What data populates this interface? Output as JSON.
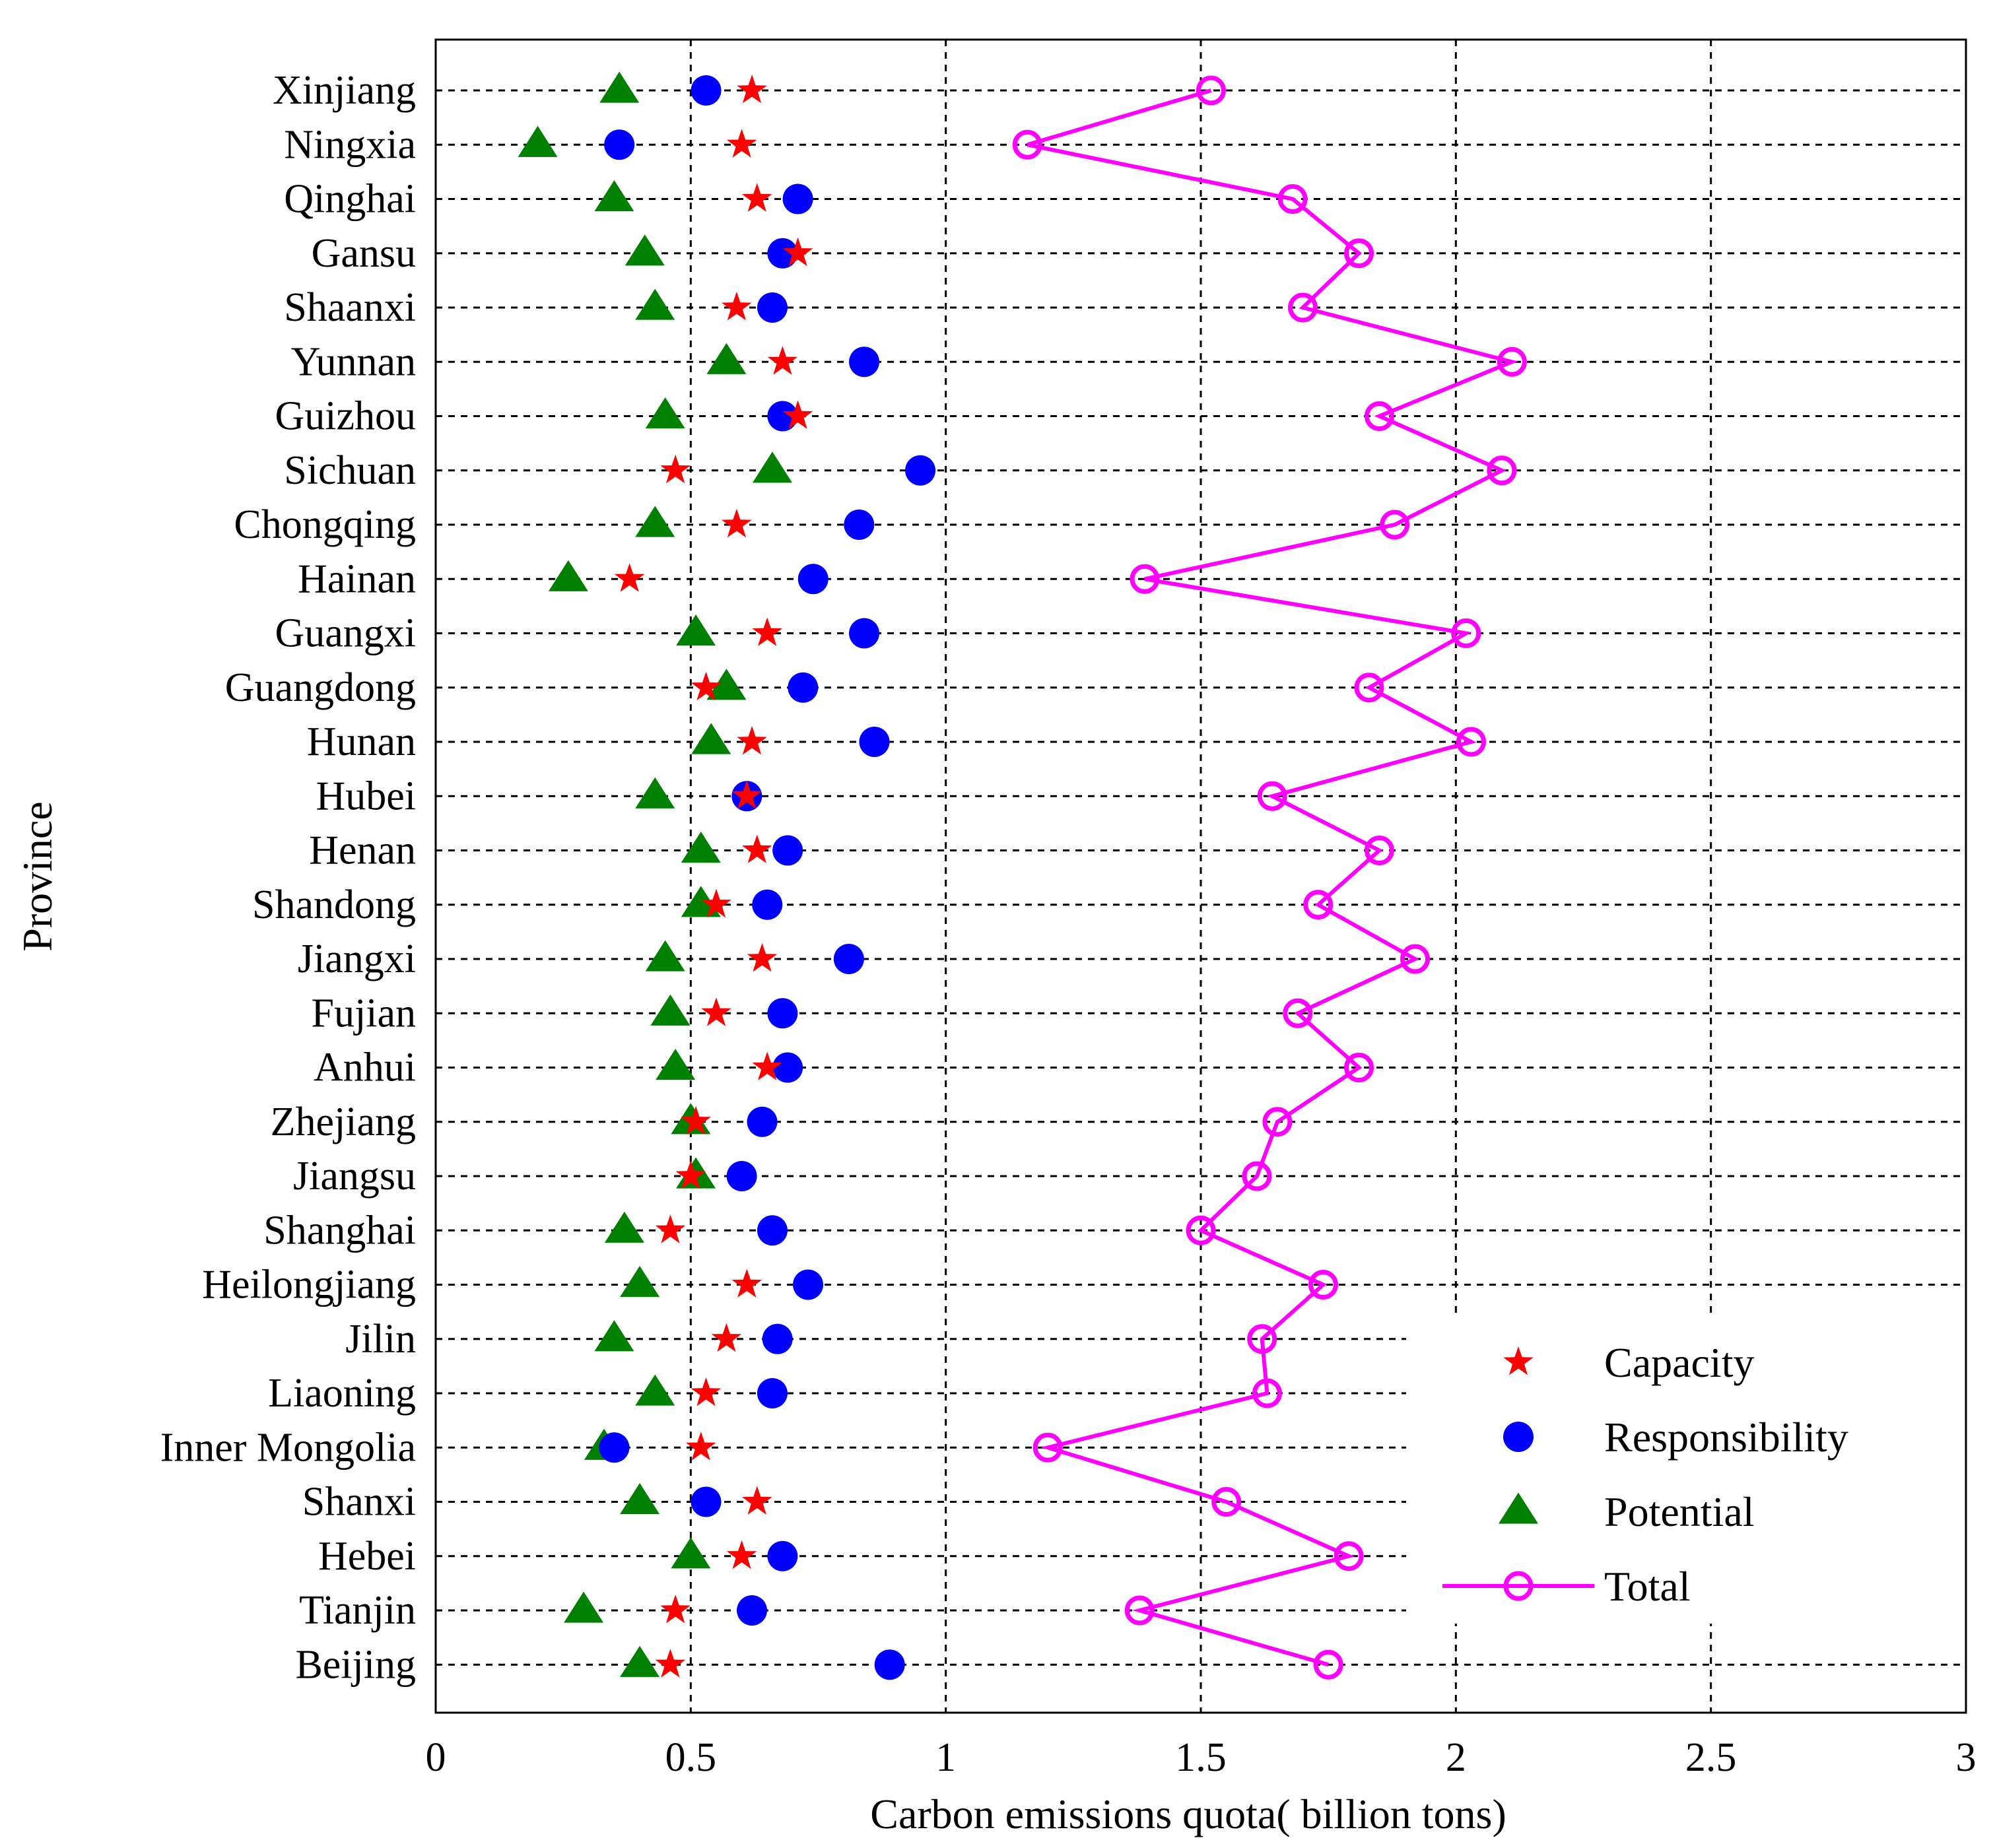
{
  "chart_data": {
    "type": "scatter",
    "title": "",
    "xlabel": "Carbon emissions quota( billion tons)",
    "ylabel": "Province",
    "xlim": [
      0,
      3
    ],
    "xticks": [
      0,
      0.5,
      1,
      1.5,
      2,
      2.5,
      3
    ],
    "xtick_labels": [
      "0",
      "0.5",
      "1",
      "1.5",
      "2",
      "2.5",
      "3"
    ],
    "grid": true,
    "legend_position": "bottom-right",
    "categories": [
      "Xinjiang",
      "Ningxia",
      "Qinghai",
      "Gansu",
      "Shaanxi",
      "Yunnan",
      "Guizhou",
      "Sichuan",
      "Chongqing",
      "Hainan",
      "Guangxi",
      "Guangdong",
      "Hunan",
      "Hubei",
      "Henan",
      "Shandong",
      "Jiangxi",
      "Fujian",
      "Anhui",
      "Zhejiang",
      "Jiangsu",
      "Shanghai",
      "Heilongjiang",
      "Jilin",
      "Liaoning",
      "Inner Mongolia",
      "Shanxi",
      "Hebei",
      "Tianjin",
      "Beijing"
    ],
    "series": [
      {
        "name": "Capacity",
        "marker": "star",
        "color": "#ff0000",
        "values": [
          0.62,
          0.6,
          0.63,
          0.71,
          0.59,
          0.68,
          0.71,
          0.47,
          0.59,
          0.38,
          0.65,
          0.53,
          0.62,
          0.61,
          0.63,
          0.55,
          0.64,
          0.55,
          0.65,
          0.51,
          0.5,
          0.46,
          0.61,
          0.57,
          0.53,
          0.52,
          0.63,
          0.6,
          0.47,
          0.46
        ]
      },
      {
        "name": "Responsibility",
        "marker": "circle",
        "color": "#0000ff",
        "values": [
          0.53,
          0.36,
          0.71,
          0.68,
          0.66,
          0.84,
          0.68,
          0.95,
          0.83,
          0.74,
          0.84,
          0.72,
          0.86,
          0.61,
          0.69,
          0.65,
          0.81,
          0.68,
          0.69,
          0.64,
          0.6,
          0.66,
          0.73,
          0.67,
          0.66,
          0.35,
          0.53,
          0.68,
          0.62,
          0.89
        ]
      },
      {
        "name": "Potential",
        "marker": "triangle",
        "color": "#008000",
        "values": [
          0.36,
          0.2,
          0.35,
          0.41,
          0.43,
          0.57,
          0.45,
          0.66,
          0.43,
          0.26,
          0.51,
          0.57,
          0.54,
          0.43,
          0.52,
          0.52,
          0.45,
          0.46,
          0.47,
          0.5,
          0.51,
          0.37,
          0.4,
          0.35,
          0.43,
          0.33,
          0.4,
          0.5,
          0.29,
          0.4
        ]
      },
      {
        "name": "Total",
        "marker": "open-circle-line",
        "color": "#ff00ff",
        "values": [
          1.52,
          1.16,
          1.68,
          1.81,
          1.7,
          2.11,
          1.85,
          2.09,
          1.88,
          1.39,
          2.02,
          1.83,
          2.03,
          1.64,
          1.85,
          1.73,
          1.92,
          1.69,
          1.81,
          1.65,
          1.61,
          1.5,
          1.74,
          1.62,
          1.63,
          1.2,
          1.55,
          1.79,
          1.38,
          1.75
        ]
      }
    ]
  }
}
